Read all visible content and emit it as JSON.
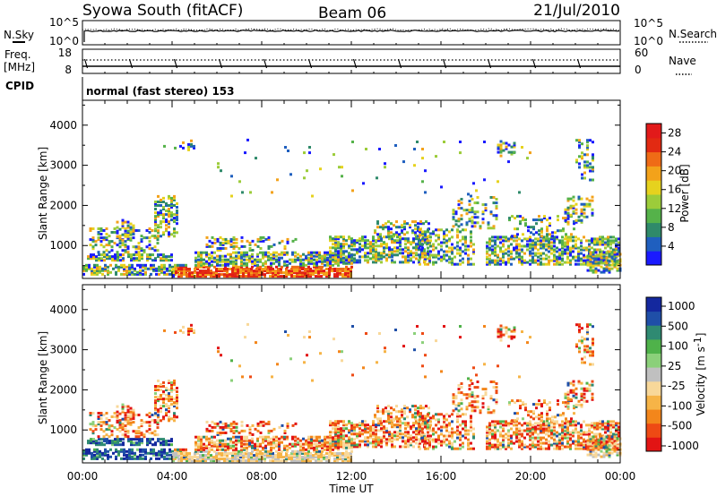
{
  "header": {
    "station": "Syowa South (fitACF)",
    "beam": "Beam 06",
    "date": "21/Jul/2010"
  },
  "noise_panel": {
    "left_label": "N.Sky",
    "right_label": "N.Search",
    "left_ticks": [
      "10^5",
      "10^0"
    ],
    "right_ticks": [
      "10^5",
      "10^0"
    ]
  },
  "freq_panel": {
    "left_label_line1": "Freq.",
    "left_label_line2": "[MHz]",
    "right_label": "Nave",
    "left_ticks": [
      "18",
      "8"
    ],
    "right_ticks": [
      "60",
      "0"
    ]
  },
  "cpid": {
    "label": "CPID",
    "text": "normal (fast stereo) 153"
  },
  "colors": {
    "power": [
      "#1a1aff",
      "#1f5fbf",
      "#2f8a6a",
      "#55b24a",
      "#9ccc3a",
      "#e6d21e",
      "#f3a21a",
      "#ef6b16",
      "#e22a12",
      "#e21a1a"
    ],
    "velocity": [
      "#e21414",
      "#ee4a14",
      "#f3861b",
      "#f6b447",
      "#f8d89a",
      "#c0c0c0",
      "#8bd07a",
      "#4fb24a",
      "#2f8a72",
      "#1f4fa8",
      "#14289e"
    ]
  },
  "chart_data": [
    {
      "type": "heatmap",
      "name": "power",
      "ylabel": "Slant Range [km]",
      "y_ticks": [
        "1000",
        "2000",
        "3000",
        "4000"
      ],
      "y_values": [
        1000,
        2000,
        3000,
        4000
      ],
      "ylim": [
        180,
        4620
      ],
      "xlim": [
        0,
        24
      ],
      "x_ticks": [
        "00:00",
        "04:00",
        "08:00",
        "12:00",
        "16:00",
        "20:00",
        "00:00"
      ],
      "colorbar_label": "Power [dB]",
      "colorbar_ticks": [
        "4",
        "8",
        "12",
        "16",
        "20",
        "24",
        "28"
      ],
      "colorbar_range": [
        0,
        30
      ]
    },
    {
      "type": "heatmap",
      "name": "velocity",
      "ylabel": "Slant Range [km]",
      "y_ticks": [
        "1000",
        "2000",
        "3000",
        "4000"
      ],
      "y_values": [
        1000,
        2000,
        3000,
        4000
      ],
      "ylim": [
        180,
        4620
      ],
      "xlim": [
        0,
        24
      ],
      "x_ticks": [
        "00:00",
        "04:00",
        "08:00",
        "12:00",
        "16:00",
        "20:00",
        "00:00"
      ],
      "xlabel": "Time UT",
      "colorbar_label": "Velocity [m s",
      "colorbar_label_sup": "-1",
      "colorbar_label_end": "]",
      "colorbar_ticks": [
        "1000",
        "500",
        "100",
        "25",
        "-25",
        "-100",
        "-500",
        "-1000"
      ]
    }
  ]
}
